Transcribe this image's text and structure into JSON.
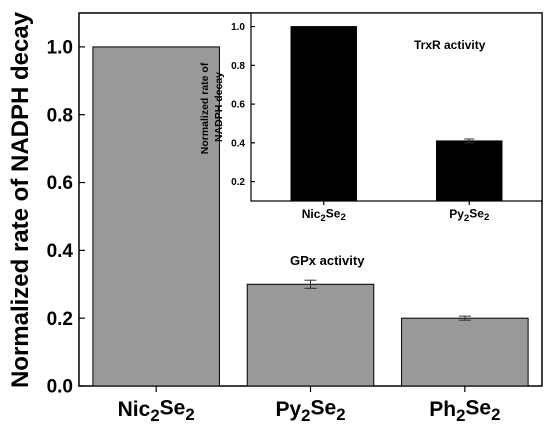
{
  "chart_data": [
    {
      "type": "bar",
      "ylabel": "Normalized rate of NADPH decay",
      "categories": [
        {
          "base": "Nic",
          "sub1": "2",
          "mid": "Se",
          "sub2": "2"
        },
        {
          "base": "Py",
          "sub1": "2",
          "mid": "Se",
          "sub2": "2"
        },
        {
          "base": "Ph",
          "sub1": "2",
          "mid": "Se",
          "sub2": "2"
        }
      ],
      "values": [
        1.0,
        0.3,
        0.2
      ],
      "errors": [
        0,
        0.012,
        0.006
      ],
      "ylim": [
        0,
        1.1
      ],
      "yticks": [
        "0.0",
        "0.2",
        "0.4",
        "0.6",
        "0.8",
        "1.0"
      ],
      "annotation": "GPx activity",
      "bar_color": "#999999"
    },
    {
      "type": "bar",
      "ylabel": [
        "Normalized rate of",
        "NADPH decay"
      ],
      "categories": [
        {
          "base": "Nic",
          "sub1": "2",
          "mid": "Se",
          "sub2": "2"
        },
        {
          "base": "Py",
          "sub1": "2",
          "mid": "Se",
          "sub2": "2"
        }
      ],
      "values": [
        1.0,
        0.41
      ],
      "errors": [
        0,
        0.01
      ],
      "ylim": [
        0.1,
        1.07
      ],
      "yticks": [
        "0.2",
        "0.4",
        "0.6",
        "0.8",
        "1.0"
      ],
      "annotation": "TrxR activity",
      "bar_color": "#000000"
    }
  ]
}
